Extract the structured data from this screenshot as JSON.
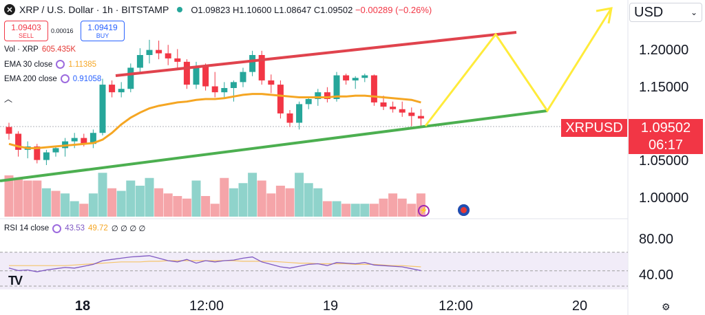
{
  "header": {
    "symbol_icon": "x-icon",
    "title": "XRP / U.S. Dollar · 1h · BITSTAMP",
    "open": "O1.09823",
    "high": "H1.10600",
    "low": "L1.08647",
    "close": "C1.09502",
    "change": "−0.00289 (−0.26%)"
  },
  "trade": {
    "sell_price": "1.09403",
    "sell_label": "SELL",
    "spread": "0.00016",
    "buy_price": "1.09419",
    "buy_label": "BUY"
  },
  "indicators": {
    "vol_label": "Vol · XRP",
    "vol_value": "605.435K",
    "ema30_label": "EMA 30 close",
    "ema30_value": "1.11385",
    "ema200_label": "EMA 200 close",
    "ema200_value": "0.91058",
    "rsi_label": "RSI 14 close",
    "rsi_value": "43.53",
    "rsi_ma_value": "49.72",
    "rsi_extra": "∅ ∅ ∅ ∅"
  },
  "currency": "USD",
  "price_axis": {
    "labels": [
      "1.20000",
      "1.15000",
      "1.05000",
      "1.00000"
    ]
  },
  "price_tag": {
    "symbol": "XRPUSD",
    "price": "1.09502",
    "countdown": "06:17"
  },
  "rsi_axis": {
    "labels": [
      "80.00",
      "40.00"
    ]
  },
  "time_axis": {
    "labels": [
      "18",
      "12:00",
      "19",
      "12:00",
      "20"
    ]
  },
  "colors": {
    "up": "#26a69a",
    "down": "#f23645",
    "ema30": "#f5a623",
    "resistance": "#e0434d",
    "support": "#4caf50",
    "projection": "#ffeb3b",
    "rsi": "#7e57c2"
  },
  "chart_data": {
    "type": "candlestick",
    "ylim": [
      0.975,
      1.235
    ],
    "candles": [
      {
        "o": 1.085,
        "h": 1.09,
        "l": 1.07,
        "c": 1.077
      },
      {
        "o": 1.077,
        "h": 1.08,
        "l": 1.05,
        "c": 1.058
      },
      {
        "o": 1.058,
        "h": 1.068,
        "l": 1.048,
        "c": 1.062
      },
      {
        "o": 1.062,
        "h": 1.065,
        "l": 1.042,
        "c": 1.046
      },
      {
        "o": 1.046,
        "h": 1.058,
        "l": 1.04,
        "c": 1.055
      },
      {
        "o": 1.055,
        "h": 1.062,
        "l": 1.05,
        "c": 1.06
      },
      {
        "o": 1.06,
        "h": 1.072,
        "l": 1.05,
        "c": 1.068
      },
      {
        "o": 1.068,
        "h": 1.078,
        "l": 1.06,
        "c": 1.072
      },
      {
        "o": 1.072,
        "h": 1.077,
        "l": 1.062,
        "c": 1.065
      },
      {
        "o": 1.065,
        "h": 1.082,
        "l": 1.06,
        "c": 1.078
      },
      {
        "o": 1.078,
        "h": 1.142,
        "l": 1.075,
        "c": 1.135
      },
      {
        "o": 1.135,
        "h": 1.14,
        "l": 1.12,
        "c": 1.126
      },
      {
        "o": 1.126,
        "h": 1.138,
        "l": 1.12,
        "c": 1.13
      },
      {
        "o": 1.13,
        "h": 1.16,
        "l": 1.126,
        "c": 1.155
      },
      {
        "o": 1.155,
        "h": 1.178,
        "l": 1.15,
        "c": 1.17
      },
      {
        "o": 1.17,
        "h": 1.188,
        "l": 1.16,
        "c": 1.176
      },
      {
        "o": 1.176,
        "h": 1.187,
        "l": 1.165,
        "c": 1.172
      },
      {
        "o": 1.172,
        "h": 1.182,
        "l": 1.158,
        "c": 1.166
      },
      {
        "o": 1.166,
        "h": 1.177,
        "l": 1.155,
        "c": 1.162
      },
      {
        "o": 1.162,
        "h": 1.165,
        "l": 1.13,
        "c": 1.135
      },
      {
        "o": 1.135,
        "h": 1.162,
        "l": 1.13,
        "c": 1.156
      },
      {
        "o": 1.156,
        "h": 1.16,
        "l": 1.128,
        "c": 1.133
      },
      {
        "o": 1.133,
        "h": 1.15,
        "l": 1.12,
        "c": 1.126
      },
      {
        "o": 1.126,
        "h": 1.138,
        "l": 1.118,
        "c": 1.131
      },
      {
        "o": 1.131,
        "h": 1.14,
        "l": 1.115,
        "c": 1.138
      },
      {
        "o": 1.138,
        "h": 1.155,
        "l": 1.132,
        "c": 1.15
      },
      {
        "o": 1.15,
        "h": 1.175,
        "l": 1.145,
        "c": 1.17
      },
      {
        "o": 1.17,
        "h": 1.175,
        "l": 1.135,
        "c": 1.14
      },
      {
        "o": 1.14,
        "h": 1.147,
        "l": 1.125,
        "c": 1.135
      },
      {
        "o": 1.135,
        "h": 1.14,
        "l": 1.095,
        "c": 1.101
      },
      {
        "o": 1.101,
        "h": 1.105,
        "l": 1.085,
        "c": 1.09
      },
      {
        "o": 1.09,
        "h": 1.115,
        "l": 1.082,
        "c": 1.112
      },
      {
        "o": 1.112,
        "h": 1.12,
        "l": 1.106,
        "c": 1.118
      },
      {
        "o": 1.118,
        "h": 1.13,
        "l": 1.11,
        "c": 1.126
      },
      {
        "o": 1.126,
        "h": 1.132,
        "l": 1.114,
        "c": 1.118
      },
      {
        "o": 1.118,
        "h": 1.15,
        "l": 1.115,
        "c": 1.146
      },
      {
        "o": 1.146,
        "h": 1.148,
        "l": 1.135,
        "c": 1.14
      },
      {
        "o": 1.14,
        "h": 1.145,
        "l": 1.13,
        "c": 1.143
      },
      {
        "o": 1.143,
        "h": 1.148,
        "l": 1.138,
        "c": 1.146
      },
      {
        "o": 1.146,
        "h": 1.147,
        "l": 1.11,
        "c": 1.114
      },
      {
        "o": 1.114,
        "h": 1.122,
        "l": 1.105,
        "c": 1.109
      },
      {
        "o": 1.109,
        "h": 1.115,
        "l": 1.102,
        "c": 1.106
      },
      {
        "o": 1.106,
        "h": 1.115,
        "l": 1.097,
        "c": 1.102
      },
      {
        "o": 1.102,
        "h": 1.108,
        "l": 1.086,
        "c": 1.098
      },
      {
        "o": 1.098,
        "h": 1.106,
        "l": 1.086,
        "c": 1.095
      }
    ],
    "ema30": [
      1.065,
      1.062,
      1.06,
      1.06,
      1.061,
      1.062,
      1.063,
      1.064,
      1.065,
      1.066,
      1.07,
      1.078,
      1.088,
      1.096,
      1.102,
      1.107,
      1.11,
      1.112,
      1.114,
      1.115,
      1.117,
      1.118,
      1.118,
      1.119,
      1.121,
      1.123,
      1.124,
      1.124,
      1.123,
      1.122,
      1.121,
      1.12,
      1.12,
      1.12,
      1.12,
      1.121,
      1.121,
      1.122,
      1.122,
      1.121,
      1.12,
      1.119,
      1.118,
      1.117,
      1.114
    ],
    "volume_rel": [
      0.8,
      0.75,
      0.7,
      0.7,
      0.55,
      0.5,
      0.45,
      0.3,
      0.25,
      0.45,
      0.85,
      0.55,
      0.5,
      0.7,
      0.6,
      0.75,
      0.55,
      0.45,
      0.4,
      0.35,
      0.7,
      0.4,
      0.25,
      0.75,
      0.55,
      0.65,
      0.85,
      0.7,
      0.45,
      0.6,
      0.55,
      0.85,
      0.65,
      0.55,
      0.3,
      0.3,
      0.25,
      0.25,
      0.25,
      0.25,
      0.35,
      0.45,
      0.35,
      0.25,
      0.45
    ],
    "volume_dir": [
      "d",
      "d",
      "d",
      "d",
      "u",
      "d",
      "u",
      "u",
      "d",
      "u",
      "u",
      "d",
      "u",
      "u",
      "u",
      "u",
      "d",
      "d",
      "d",
      "d",
      "u",
      "d",
      "d",
      "d",
      "u",
      "u",
      "u",
      "d",
      "d",
      "d",
      "d",
      "u",
      "u",
      "u",
      "d",
      "u",
      "d",
      "u",
      "u",
      "d",
      "d",
      "d",
      "d",
      "d",
      "d"
    ],
    "rsi": [
      48,
      44,
      45,
      42,
      45,
      47,
      49,
      48,
      51,
      54,
      60,
      62,
      64,
      66,
      67,
      68,
      64,
      60,
      58,
      62,
      56,
      60,
      58,
      60,
      61,
      64,
      66,
      58,
      54,
      50,
      48,
      51,
      54,
      55,
      52,
      57,
      56,
      55,
      57,
      53,
      52,
      51,
      50,
      47,
      44
    ],
    "rsi_ma": [
      52,
      52,
      52,
      52,
      52,
      52,
      52,
      53,
      54,
      55,
      56,
      57,
      58,
      58,
      58,
      59,
      59,
      60,
      60,
      60,
      60,
      60,
      60,
      60,
      60,
      59,
      59,
      59,
      59,
      58,
      57,
      56,
      56,
      55,
      55,
      55,
      55,
      54,
      54,
      54,
      53,
      52,
      52,
      51,
      50
    ],
    "rsi_ylim": [
      30,
      95
    ],
    "rsi_bands": [
      70,
      50,
      30
    ]
  }
}
